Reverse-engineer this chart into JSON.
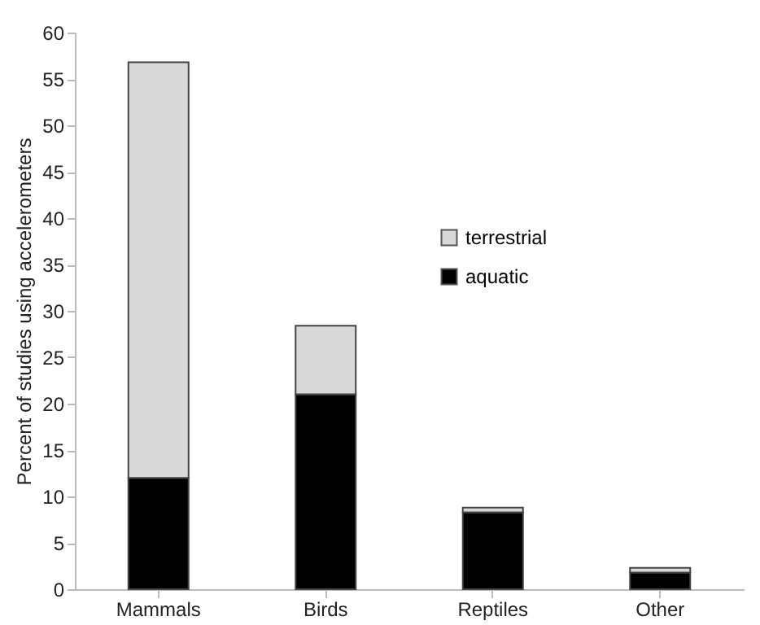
{
  "chart_data": {
    "type": "bar",
    "stacked": true,
    "ylabel": "Percent of studies using accelerometers",
    "categories": [
      "Mammals",
      "Birds",
      "Reptiles",
      "Other"
    ],
    "series": [
      {
        "name": "aquatic",
        "color": "#000000",
        "values": [
          12,
          21,
          8.3,
          1.8
        ]
      },
      {
        "name": "terrestrial",
        "color": "#d9d9d9",
        "values": [
          44.8,
          7.4,
          0.5,
          0.5
        ]
      }
    ],
    "ylim": [
      0,
      60
    ],
    "yticks": [
      0,
      5,
      10,
      15,
      20,
      25,
      30,
      35,
      40,
      45,
      50,
      55,
      60
    ],
    "legend": "top right"
  }
}
